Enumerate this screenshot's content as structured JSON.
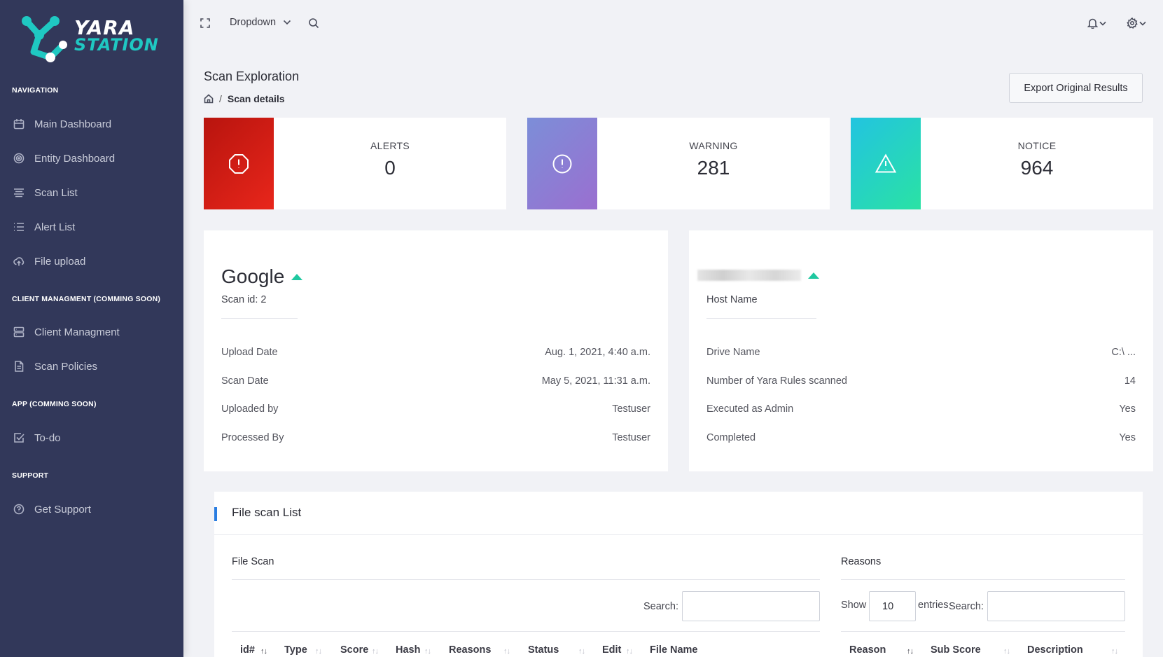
{
  "brand": {
    "line1": "YARA",
    "line2": "STATION"
  },
  "sidebar": {
    "sections": [
      {
        "heading": "NAVIGATION",
        "items": [
          {
            "label": "Main Dashboard",
            "icon": "calendar-icon"
          },
          {
            "label": "Entity Dashboard",
            "icon": "target-icon"
          },
          {
            "label": "Scan List",
            "icon": "align-icon"
          },
          {
            "label": "Alert List",
            "icon": "list-icon"
          },
          {
            "label": "File upload",
            "icon": "cloud-upload-icon"
          }
        ]
      },
      {
        "heading": "CLIENT MANAGMENT (COMMING SOON)",
        "items": [
          {
            "label": "Client Managment",
            "icon": "server-icon"
          },
          {
            "label": "Scan Policies",
            "icon": "document-icon"
          }
        ]
      },
      {
        "heading": "APP (COMMING SOON)",
        "items": [
          {
            "label": "To-do",
            "icon": "checkbox-icon"
          }
        ]
      },
      {
        "heading": "SUPPORT",
        "items": [
          {
            "label": "Get Support",
            "icon": "help-circle-icon"
          }
        ]
      }
    ]
  },
  "topbar": {
    "dropdown_label": "Dropdown"
  },
  "page": {
    "title": "Scan Exploration",
    "breadcrumb_sep": "/",
    "breadcrumb_current": "Scan details",
    "export_label": "Export Original Results"
  },
  "stats": [
    {
      "label": "ALERTS",
      "value": "0",
      "icon": "alert-octagon-icon",
      "gradient": [
        "#b8140e",
        "#e8261b"
      ]
    },
    {
      "label": "WARNING",
      "value": "281",
      "icon": "alert-circle-icon",
      "gradient": [
        "#7c8ed8",
        "#9a6fd0"
      ]
    },
    {
      "label": "NOTICE",
      "value": "964",
      "icon": "alert-triangle-icon",
      "gradient": [
        "#22c4e0",
        "#2ae2a4"
      ]
    }
  ],
  "scan_card": {
    "name": "Google",
    "scan_id": "Scan id: 2",
    "rows": [
      {
        "key": "Upload Date",
        "value": "Aug. 1, 2021, 4:40 a.m."
      },
      {
        "key": "Scan Date",
        "value": "May 5, 2021, 11:31 a.m."
      },
      {
        "key": "Uploaded by",
        "value": "Testuser"
      },
      {
        "key": "Processed By",
        "value": "Testuser"
      }
    ]
  },
  "host_card": {
    "subtitle": "Host Name",
    "rows": [
      {
        "key": "Drive Name",
        "value": "C:\\ ..."
      },
      {
        "key": "Number of Yara Rules scanned",
        "value": "14"
      },
      {
        "key": "Executed as Admin",
        "value": "Yes"
      },
      {
        "key": "Completed",
        "value": "Yes"
      }
    ]
  },
  "file_scan_list": {
    "title": "File scan List",
    "left": {
      "title": "File Scan",
      "search_label": "Search:",
      "columns": [
        "id#",
        "Type",
        "Score",
        "Hash",
        "Reasons",
        "Status",
        "Edit",
        "File Name"
      ]
    },
    "right": {
      "title": "Reasons",
      "show_label": "Show",
      "show_value": "10",
      "entries_label": "entries",
      "search_label": "Search:",
      "columns": [
        "Reason",
        "Sub Score",
        "Description"
      ]
    }
  },
  "colors": {
    "sidebar": "#32385a",
    "accent": "#1fc8a0",
    "link_bar": "#2a7de1"
  }
}
